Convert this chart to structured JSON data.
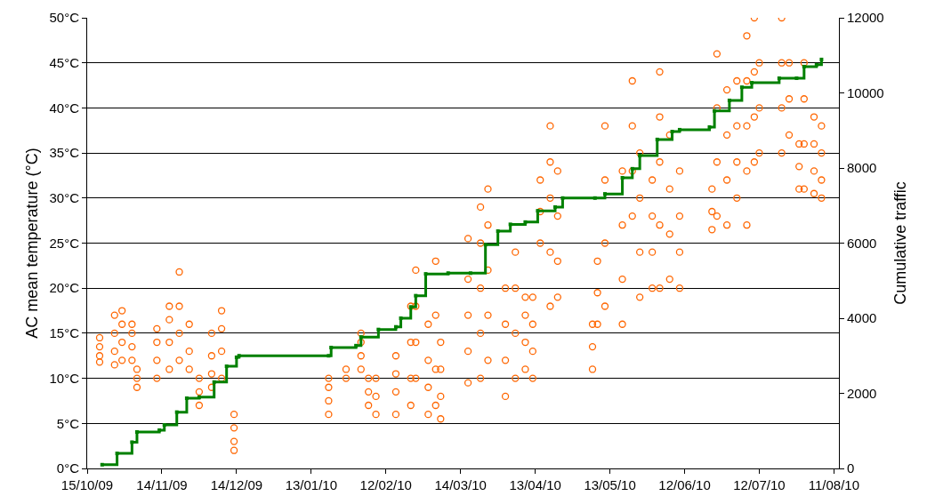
{
  "chart_data": {
    "type": "scatter",
    "ylabel": "AC mean temperature (°C)",
    "y2label": "Cumulative traffic",
    "xlim": [
      "2009-10-15",
      "2010-08-13"
    ],
    "xticks": [
      {
        "value": "2009-10-15",
        "label": "15/10/09"
      },
      {
        "value": "2009-11-14",
        "label": "14/11/09"
      },
      {
        "value": "2009-12-14",
        "label": "14/12/09"
      },
      {
        "value": "2010-01-13",
        "label": "13/01/10"
      },
      {
        "value": "2010-02-12",
        "label": "12/02/10"
      },
      {
        "value": "2010-03-14",
        "label": "14/03/10"
      },
      {
        "value": "2010-04-13",
        "label": "13/04/10"
      },
      {
        "value": "2010-05-13",
        "label": "13/05/10"
      },
      {
        "value": "2010-06-12",
        "label": "12/06/10"
      },
      {
        "value": "2010-07-12",
        "label": "12/07/10"
      },
      {
        "value": "2010-08-11",
        "label": "11/08/10"
      }
    ],
    "ylim": [
      0,
      50
    ],
    "yticks": [
      {
        "value": 0,
        "label": "0°C"
      },
      {
        "value": 5,
        "label": "5°C"
      },
      {
        "value": 10,
        "label": "10°C"
      },
      {
        "value": 15,
        "label": "15°C"
      },
      {
        "value": 20,
        "label": "20°C"
      },
      {
        "value": 25,
        "label": "25°C"
      },
      {
        "value": 30,
        "label": "30°C"
      },
      {
        "value": 35,
        "label": "35°C"
      },
      {
        "value": 40,
        "label": "40°C"
      },
      {
        "value": 45,
        "label": "45°C"
      },
      {
        "value": 50,
        "label": "50°C"
      }
    ],
    "y2lim": [
      0,
      12000
    ],
    "y2ticks": [
      0,
      2000,
      4000,
      6000,
      8000,
      10000,
      12000
    ],
    "grid": "y",
    "series": [
      {
        "type": "scatter",
        "color": "#ff6600",
        "marker": "circle",
        "x": [
          "2009-10-20",
          "2009-10-20",
          "2009-10-20",
          "2009-10-20",
          "2009-10-26",
          "2009-10-26",
          "2009-10-26",
          "2009-10-26",
          "2009-10-29",
          "2009-10-29",
          "2009-10-29",
          "2009-10-29",
          "2009-11-02",
          "2009-11-02",
          "2009-11-02",
          "2009-11-02",
          "2009-11-04",
          "2009-11-04",
          "2009-11-04",
          "2009-11-12",
          "2009-11-12",
          "2009-11-12",
          "2009-11-12",
          "2009-11-17",
          "2009-11-17",
          "2009-11-17",
          "2009-11-17",
          "2009-11-21",
          "2009-11-21",
          "2009-11-21",
          "2009-11-21",
          "2009-11-25",
          "2009-11-25",
          "2009-11-25",
          "2009-11-29",
          "2009-11-29",
          "2009-11-29",
          "2009-12-04",
          "2009-12-04",
          "2009-12-04",
          "2009-12-04",
          "2009-12-08",
          "2009-12-08",
          "2009-12-08",
          "2009-12-08",
          "2009-12-13",
          "2009-12-13",
          "2009-12-13",
          "2009-12-13",
          "2010-01-20",
          "2010-01-20",
          "2010-01-20",
          "2010-01-20",
          "2010-01-27",
          "2010-01-27",
          "2010-02-02",
          "2010-02-02",
          "2010-02-02",
          "2010-02-02",
          "2010-02-05",
          "2010-02-05",
          "2010-02-05",
          "2010-02-08",
          "2010-02-08",
          "2010-02-08",
          "2010-02-16",
          "2010-02-16",
          "2010-02-16",
          "2010-02-16",
          "2010-02-22",
          "2010-02-22",
          "2010-02-22",
          "2010-02-22",
          "2010-02-24",
          "2010-02-24",
          "2010-02-24",
          "2010-02-24",
          "2010-03-01",
          "2010-03-01",
          "2010-03-01",
          "2010-03-01",
          "2010-03-04",
          "2010-03-04",
          "2010-03-04",
          "2010-03-04",
          "2010-03-06",
          "2010-03-06",
          "2010-03-06",
          "2010-03-06",
          "2010-03-17",
          "2010-03-17",
          "2010-03-17",
          "2010-03-17",
          "2010-03-17",
          "2010-03-22",
          "2010-03-22",
          "2010-03-22",
          "2010-03-22",
          "2010-03-22",
          "2010-03-25",
          "2010-03-25",
          "2010-03-25",
          "2010-03-25",
          "2010-03-25",
          "2010-04-01",
          "2010-04-01",
          "2010-04-01",
          "2010-04-01",
          "2010-04-05",
          "2010-04-05",
          "2010-04-05",
          "2010-04-05",
          "2010-04-09",
          "2010-04-09",
          "2010-04-09",
          "2010-04-09",
          "2010-04-12",
          "2010-04-12",
          "2010-04-12",
          "2010-04-12",
          "2010-04-15",
          "2010-04-15",
          "2010-04-15",
          "2010-04-19",
          "2010-04-19",
          "2010-04-19",
          "2010-04-19",
          "2010-04-19",
          "2010-04-22",
          "2010-04-22",
          "2010-04-22",
          "2010-04-22",
          "2010-05-06",
          "2010-05-06",
          "2010-05-06",
          "2010-05-08",
          "2010-05-08",
          "2010-05-08",
          "2010-05-11",
          "2010-05-11",
          "2010-05-11",
          "2010-05-11",
          "2010-05-18",
          "2010-05-18",
          "2010-05-18",
          "2010-05-18",
          "2010-05-22",
          "2010-05-22",
          "2010-05-22",
          "2010-05-22",
          "2010-05-25",
          "2010-05-25",
          "2010-05-25",
          "2010-05-25",
          "2010-05-30",
          "2010-05-30",
          "2010-05-30",
          "2010-05-30",
          "2010-06-02",
          "2010-06-02",
          "2010-06-02",
          "2010-06-02",
          "2010-06-02",
          "2010-06-06",
          "2010-06-06",
          "2010-06-06",
          "2010-06-06",
          "2010-06-10",
          "2010-06-10",
          "2010-06-10",
          "2010-06-10",
          "2010-06-23",
          "2010-06-23",
          "2010-06-23",
          "2010-06-25",
          "2010-06-25",
          "2010-06-25",
          "2010-06-25",
          "2010-06-29",
          "2010-06-29",
          "2010-06-29",
          "2010-06-29",
          "2010-07-03",
          "2010-07-03",
          "2010-07-03",
          "2010-07-03",
          "2010-07-07",
          "2010-07-07",
          "2010-07-07",
          "2010-07-07",
          "2010-07-07",
          "2010-07-10",
          "2010-07-10",
          "2010-07-10",
          "2010-07-10",
          "2010-07-12",
          "2010-07-12",
          "2010-07-12",
          "2010-07-21",
          "2010-07-21",
          "2010-07-21",
          "2010-07-21",
          "2010-07-24",
          "2010-07-24",
          "2010-07-24",
          "2010-07-28",
          "2010-07-28",
          "2010-07-28",
          "2010-07-30",
          "2010-07-30",
          "2010-07-30",
          "2010-07-30",
          "2010-08-03",
          "2010-08-03",
          "2010-08-03",
          "2010-08-03",
          "2010-08-06",
          "2010-08-06",
          "2010-08-06",
          "2010-08-06"
        ],
        "values": [
          11.8,
          12.5,
          13.5,
          14.5,
          11.5,
          13,
          15,
          17,
          12,
          14,
          16,
          17.5,
          12,
          13.5,
          15,
          16,
          9,
          10,
          11,
          10,
          12,
          14,
          15.5,
          11,
          14,
          16.5,
          18,
          12,
          15,
          18,
          21.8,
          11,
          13,
          16,
          7,
          8.5,
          10,
          9,
          10.5,
          12.5,
          15,
          10,
          13,
          15.5,
          17.5,
          2,
          3,
          4.5,
          6,
          6,
          7.5,
          9,
          10,
          10,
          11,
          11,
          12.5,
          14,
          15,
          7,
          8.5,
          10,
          6,
          8,
          10,
          6,
          8.5,
          10.5,
          12.5,
          7,
          10,
          14,
          18,
          10,
          14,
          18,
          22,
          6,
          9,
          12,
          16,
          7,
          11,
          17,
          23,
          5.5,
          8,
          11,
          14,
          9.5,
          13,
          17,
          21,
          25.5,
          10,
          15,
          20,
          25,
          29,
          12,
          17,
          22,
          27,
          31,
          8,
          12,
          16,
          20,
          10,
          15,
          20,
          24,
          11,
          14,
          17,
          19,
          10,
          13,
          16,
          19,
          25,
          28.5,
          32,
          18,
          24,
          30,
          34,
          38,
          19,
          23,
          28,
          33,
          11,
          13.5,
          16,
          16,
          19.5,
          23,
          18,
          25,
          32,
          38,
          16,
          21,
          27,
          33,
          28,
          33,
          38,
          43,
          19,
          24,
          30,
          35,
          20,
          24,
          28,
          32,
          20,
          27,
          34,
          39,
          44,
          21,
          26,
          31,
          37,
          20,
          24,
          28,
          33,
          26.5,
          28.5,
          31,
          28,
          34,
          40,
          46,
          27,
          32,
          37,
          42,
          30,
          34,
          38,
          43,
          27,
          33,
          38,
          43,
          48,
          34,
          39,
          44,
          50,
          35,
          40,
          45,
          35,
          40,
          45,
          50,
          37,
          41,
          45,
          31,
          33.5,
          36,
          31,
          36,
          41,
          45,
          30.5,
          33,
          36,
          39,
          30,
          32,
          35,
          38
        ]
      },
      {
        "type": "step",
        "axis": "y2",
        "color": "#008000",
        "marker": "square",
        "line_style": "solid",
        "x": [
          "2009-10-21",
          "2009-10-27",
          "2009-11-02",
          "2009-11-04",
          "2009-11-13",
          "2009-11-15",
          "2009-11-20",
          "2009-11-24",
          "2009-11-29",
          "2009-12-05",
          "2009-12-10",
          "2009-12-14",
          "2009-12-15",
          "2010-01-20",
          "2010-01-21",
          "2010-01-31",
          "2010-02-02",
          "2010-02-09",
          "2010-02-16",
          "2010-02-18",
          "2010-02-22",
          "2010-02-24",
          "2010-02-28",
          "2010-03-09",
          "2010-03-18",
          "2010-03-24",
          "2010-03-29",
          "2010-04-03",
          "2010-04-09",
          "2010-04-14",
          "2010-04-21",
          "2010-04-24",
          "2010-05-07",
          "2010-05-11",
          "2010-05-18",
          "2010-05-22",
          "2010-05-25",
          "2010-06-01",
          "2010-06-07",
          "2010-06-10",
          "2010-06-22",
          "2010-06-24",
          "2010-06-30",
          "2010-07-05",
          "2010-07-09",
          "2010-07-20",
          "2010-07-27",
          "2010-07-30",
          "2010-08-04",
          "2010-08-06"
        ],
        "values": [
          100,
          400,
          700,
          970,
          1020,
          1160,
          1500,
          1870,
          1900,
          2300,
          2720,
          2960,
          3000,
          3000,
          3220,
          3270,
          3500,
          3700,
          3770,
          4000,
          4300,
          4600,
          5180,
          5200,
          5200,
          5960,
          6320,
          6500,
          6560,
          6860,
          6960,
          7200,
          7200,
          7310,
          7740,
          7980,
          8330,
          8760,
          8970,
          9020,
          9090,
          9520,
          9800,
          10150,
          10270,
          10390,
          10390,
          10700,
          10750,
          10890
        ]
      }
    ]
  }
}
